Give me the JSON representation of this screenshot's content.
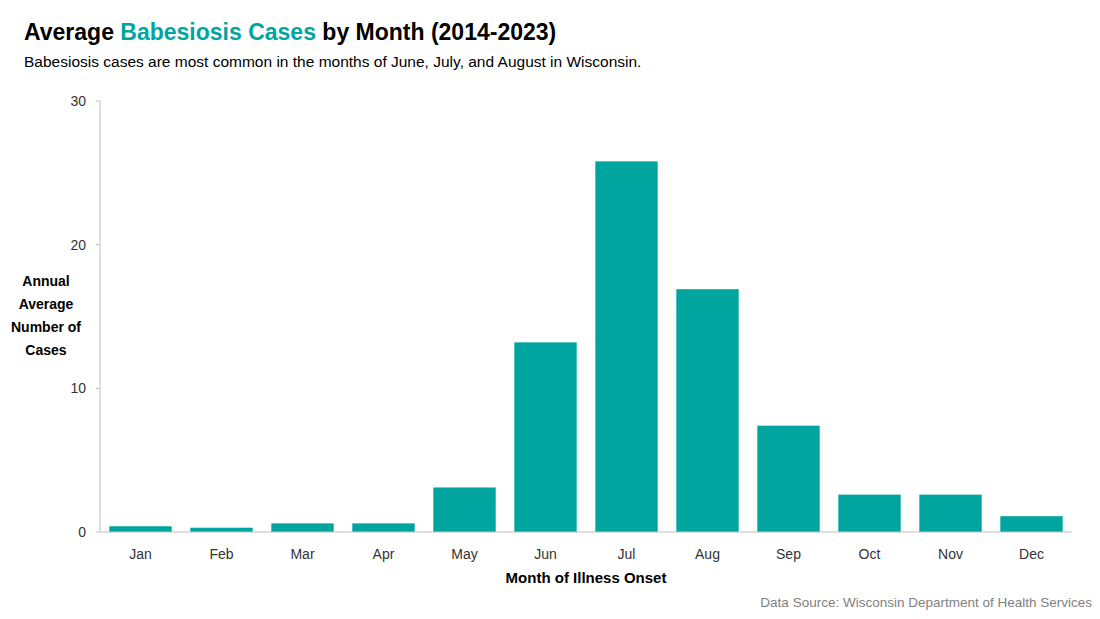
{
  "chart_data": {
    "type": "bar",
    "title": [
      "Average ",
      "Babesiosis Cases",
      " by Month (2014-2023)"
    ],
    "subtitle": "Babesiosis cases are most common in the months of June, July, and August in Wisconsin.",
    "x_label": "Month of Illness Onset",
    "y_label": "Annual Average Number of Cases",
    "source": "Data Source: Wisconsin Department of Health Services",
    "categories": [
      "Jan",
      "Feb",
      "Mar",
      "Apr",
      "May",
      "Jun",
      "Jul",
      "Aug",
      "Sep",
      "Oct",
      "Nov",
      "Dec"
    ],
    "values": [
      0.4,
      0.3,
      0.6,
      0.6,
      3.1,
      13.2,
      25.8,
      16.9,
      7.4,
      2.6,
      2.6,
      1.1
    ],
    "color": "#00a59f",
    "ylim": [
      0,
      30
    ],
    "yticks": [
      0,
      10,
      20,
      30
    ],
    "grid": false
  }
}
